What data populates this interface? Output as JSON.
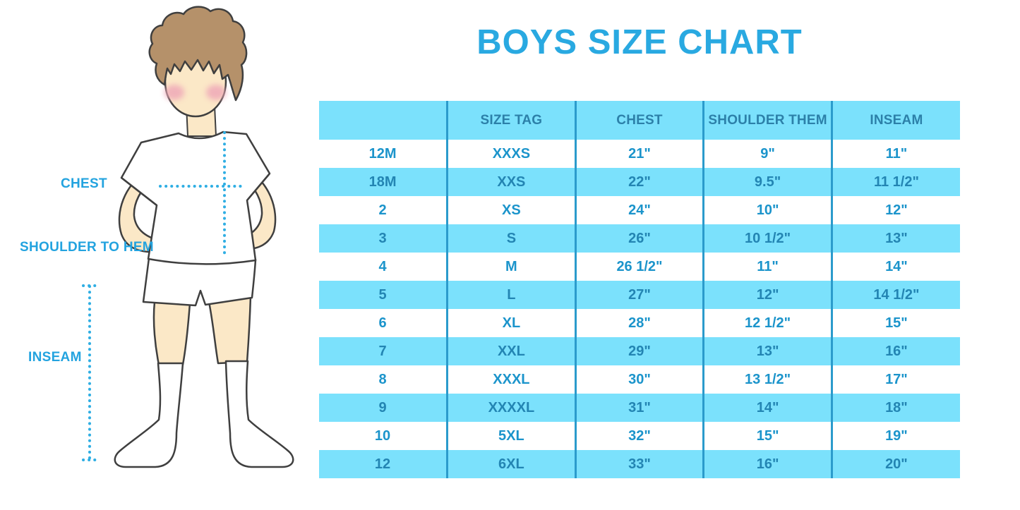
{
  "title": "BOYS SIZE CHART",
  "figure": {
    "description": "cartoon boy in white t-shirt, shorts and knee socks with dotted measurement guides",
    "labels": {
      "chest": "CHEST",
      "shoulder_to_hem": "SHOULDER TO HEM",
      "inseam": "INSEAM"
    }
  },
  "colors": {
    "title_blue": "#29A9E1",
    "label_blue": "#23A3DF",
    "dotted_line_blue": "#2FAEE3",
    "row_light_blue": "#7BE1FC",
    "column_divider_blue": "#2B9BCC",
    "header_text_blue": "#2C80A9",
    "cell_text_blue": "#1B94CB",
    "cell_text_on_blue": "#2385B3",
    "skin": "#FBE8C7",
    "hair_brown": "#B5916A",
    "blush_pink": "#EFA9B8"
  },
  "chart_data": {
    "type": "table",
    "title": "BOYS SIZE CHART",
    "columns": [
      "",
      "SIZE TAG",
      "CHEST",
      "SHOULDER THEM",
      "INSEAM"
    ],
    "rows": [
      [
        "12M",
        "XXXS",
        "21\"",
        "9\"",
        "11\""
      ],
      [
        "18M",
        "XXS",
        "22\"",
        "9.5\"",
        "11 1/2\""
      ],
      [
        "2",
        "XS",
        "24\"",
        "10\"",
        "12\""
      ],
      [
        "3",
        "S",
        "26\"",
        "10 1/2\"",
        "13\""
      ],
      [
        "4",
        "M",
        "26 1/2\"",
        "11\"",
        "14\""
      ],
      [
        "5",
        "L",
        "27\"",
        "12\"",
        "14 1/2\""
      ],
      [
        "6",
        "XL",
        "28\"",
        "12 1/2\"",
        "15\""
      ],
      [
        "7",
        "XXL",
        "29\"",
        "13\"",
        "16\""
      ],
      [
        "8",
        "XXXL",
        "30\"",
        "13 1/2\"",
        "17\""
      ],
      [
        "9",
        "XXXXL",
        "31\"",
        "14\"",
        "18\""
      ],
      [
        "10",
        "5XL",
        "32\"",
        "15\"",
        "19\""
      ],
      [
        "12",
        "6XL",
        "33\"",
        "16\"",
        "20\""
      ]
    ],
    "row_striping": "alternating white and light blue, starting white",
    "legend_position": "none",
    "grid": "vertical column dividers only"
  }
}
